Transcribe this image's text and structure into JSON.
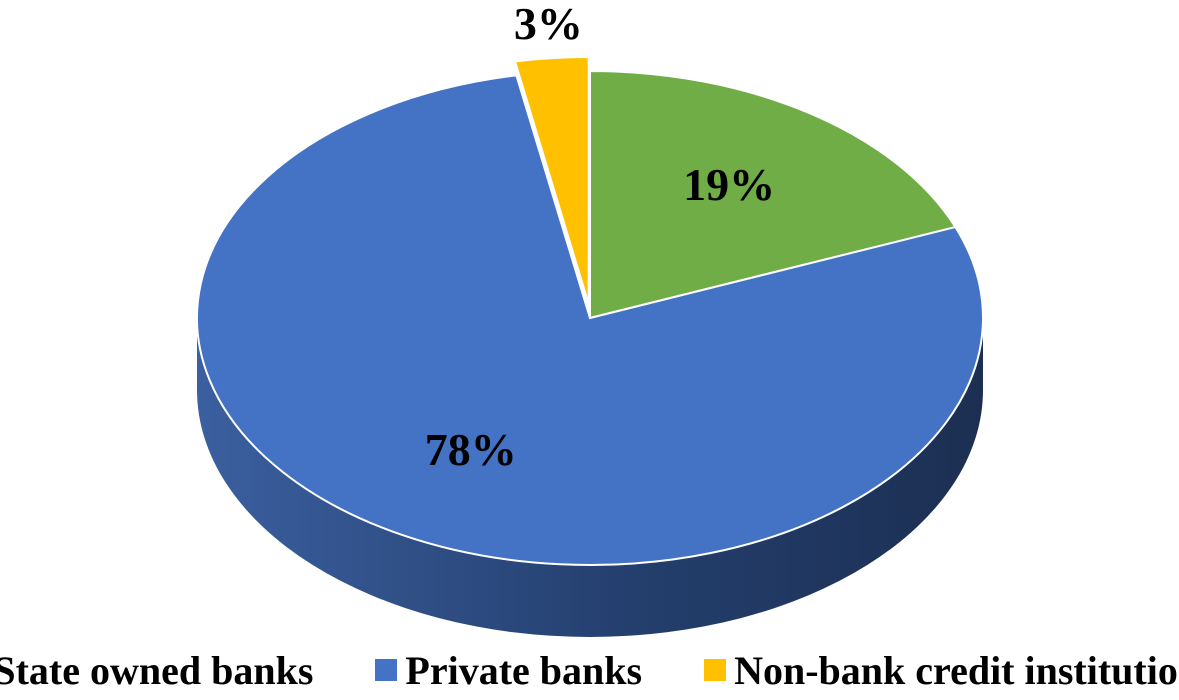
{
  "chart_data": {
    "type": "pie",
    "style": "3d-pie",
    "categories": [
      "State owned banks",
      "Private banks",
      "Non-bank credit institutions"
    ],
    "values": [
      19,
      78,
      3
    ],
    "labels": [
      "19%",
      "78%",
      "3%"
    ],
    "colors": [
      "#70AD47",
      "#4472C4",
      "#FFC000"
    ],
    "legend": "bottom",
    "exploded": [
      "Non-bank credit institutions"
    ]
  }
}
